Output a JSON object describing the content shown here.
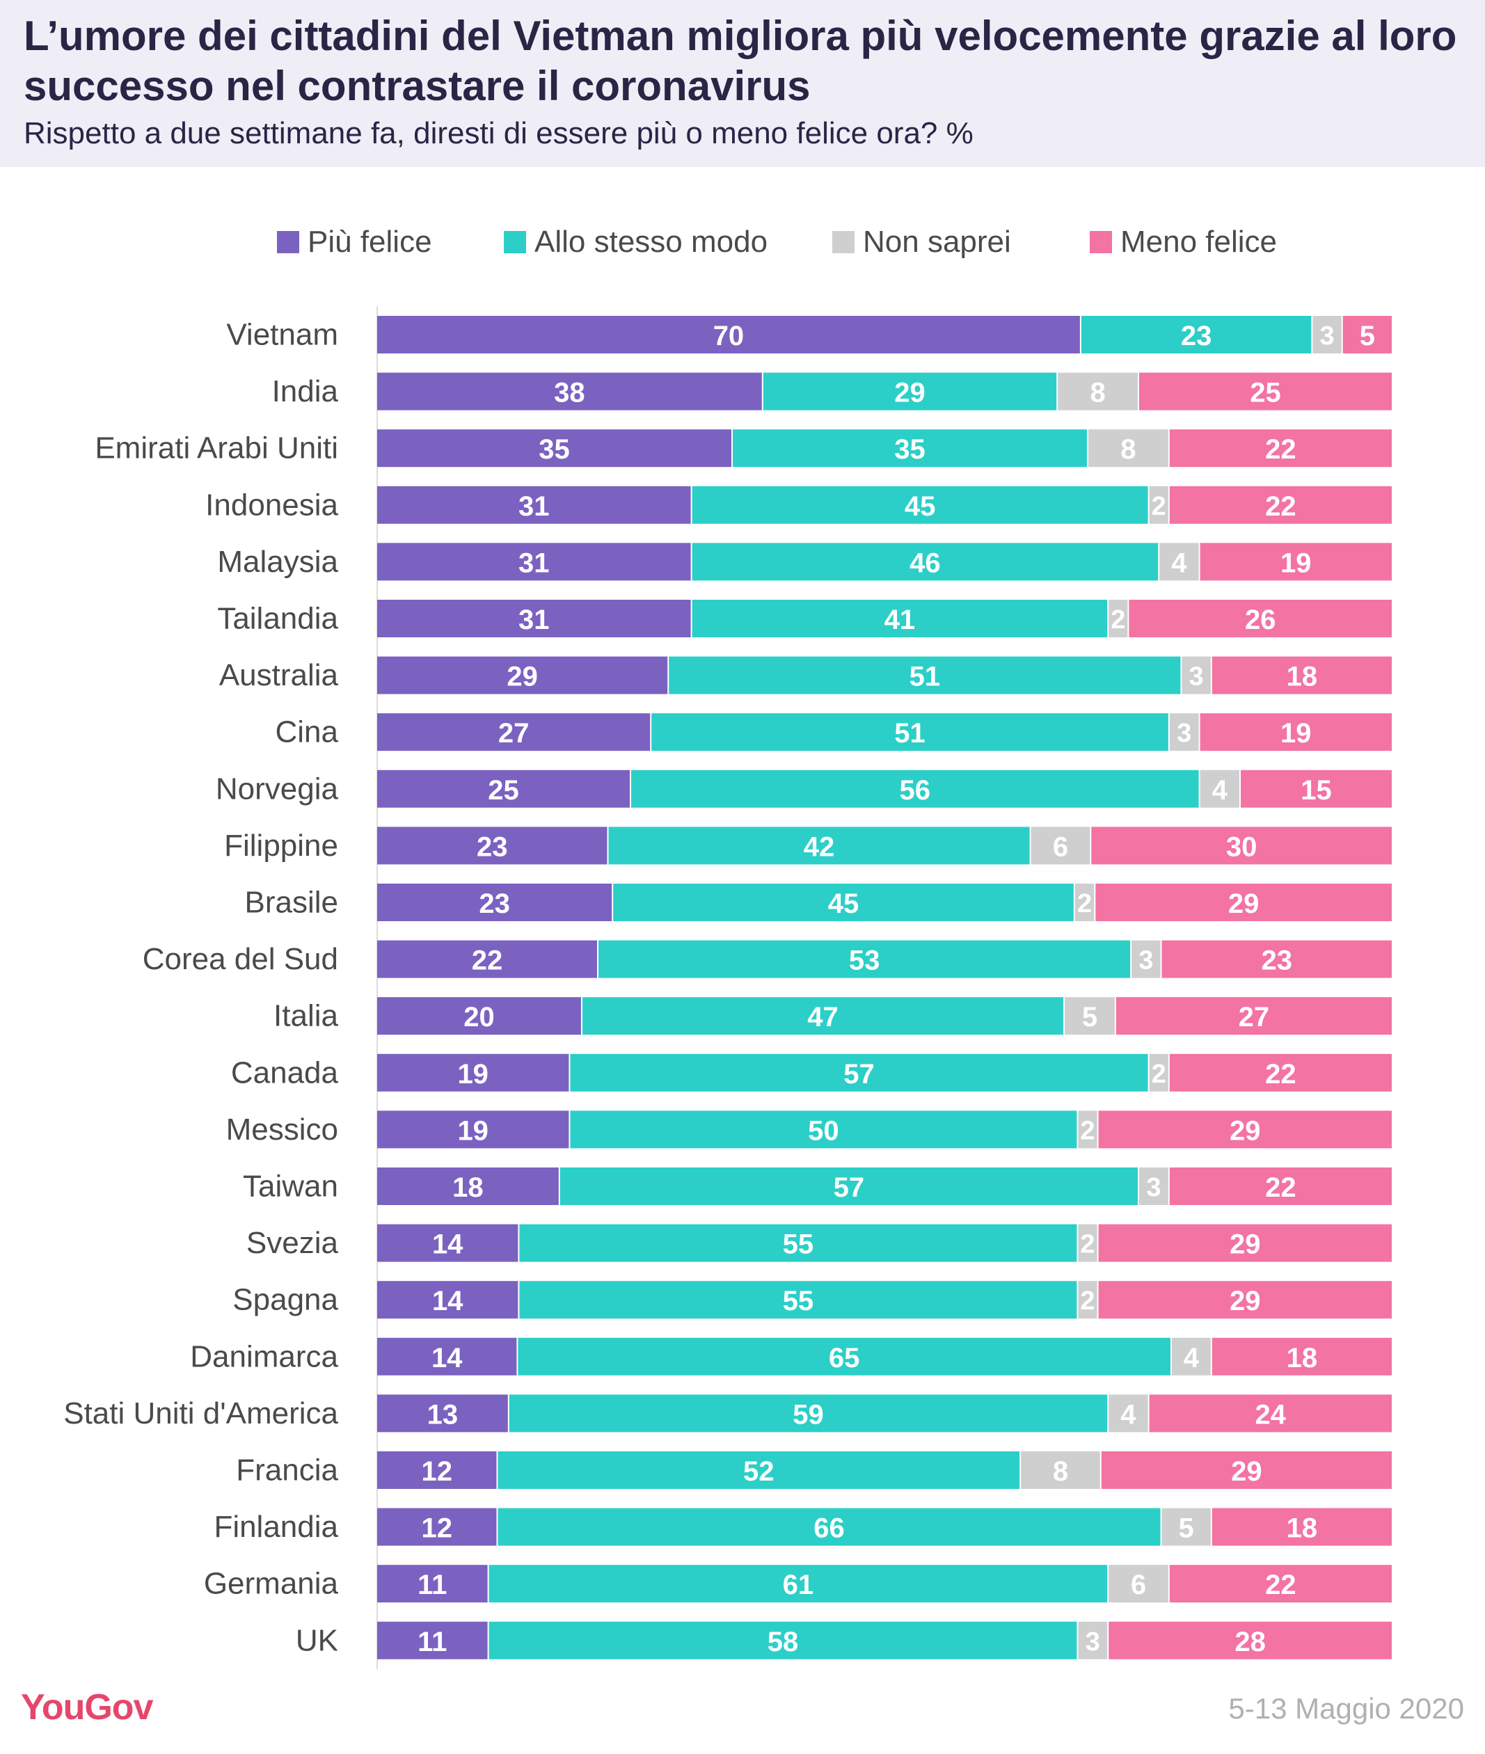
{
  "header": {
    "title": "L’umore dei cittadini del Vietman migliora più velocemente grazie al loro successo nel contrastare il coronavirus",
    "subtitle": "Rispetto a due settimane fa, diresti di essere più o meno felice ora? %"
  },
  "legend": [
    {
      "label": "Più felice",
      "color": "#7b62c1"
    },
    {
      "label": "Allo stesso modo",
      "color": "#2bcfc8"
    },
    {
      "label": "Non saprei",
      "color": "#cfcfcf"
    },
    {
      "label": "Meno felice",
      "color": "#f373a3"
    }
  ],
  "chart_data": {
    "type": "bar",
    "orientation": "horizontal",
    "stacked": true,
    "categories": [
      "Vietnam",
      "India",
      "Emirati Arabi Uniti",
      "Indonesia",
      "Malaysia",
      "Tailandia",
      "Australia",
      "Cina",
      "Norvegia",
      "Filippine",
      "Brasile",
      "Corea del Sud",
      "Italia",
      "Canada",
      "Messico",
      "Taiwan",
      "Svezia",
      "Spagna",
      "Danimarca",
      "Stati Uniti d'America",
      "Francia",
      "Finlandia",
      "Germania",
      "UK"
    ],
    "series": [
      {
        "name": "Più felice",
        "color": "#7b62c1",
        "label_color": "#ffffff",
        "values": [
          70,
          38,
          35,
          31,
          31,
          31,
          29,
          27,
          25,
          23,
          23,
          22,
          20,
          19,
          19,
          18,
          14,
          14,
          14,
          13,
          12,
          12,
          11,
          11
        ]
      },
      {
        "name": "Allo stesso modo",
        "color": "#2bcfc8",
        "label_color": "#ffffff",
        "values": [
          23,
          29,
          35,
          45,
          46,
          41,
          51,
          51,
          56,
          42,
          45,
          53,
          47,
          57,
          50,
          57,
          55,
          55,
          65,
          59,
          52,
          66,
          61,
          58
        ]
      },
      {
        "name": "Non saprei",
        "color": "#cfcfcf",
        "label_color": "#ffffff",
        "values": [
          3,
          8,
          8,
          2,
          4,
          2,
          3,
          3,
          4,
          6,
          2,
          3,
          5,
          2,
          2,
          3,
          2,
          2,
          4,
          4,
          8,
          5,
          6,
          3
        ]
      },
      {
        "name": "Meno felice",
        "color": "#f373a3",
        "label_color": "#ffffff",
        "values": [
          5,
          25,
          22,
          22,
          19,
          26,
          18,
          19,
          15,
          30,
          29,
          23,
          27,
          22,
          29,
          22,
          29,
          29,
          18,
          24,
          29,
          18,
          22,
          28
        ]
      }
    ],
    "xlim": [
      0,
      100
    ],
    "grid": false,
    "legend_position": "top"
  },
  "footer": {
    "logo": "YouGov",
    "date": "5-13 Maggio 2020"
  }
}
